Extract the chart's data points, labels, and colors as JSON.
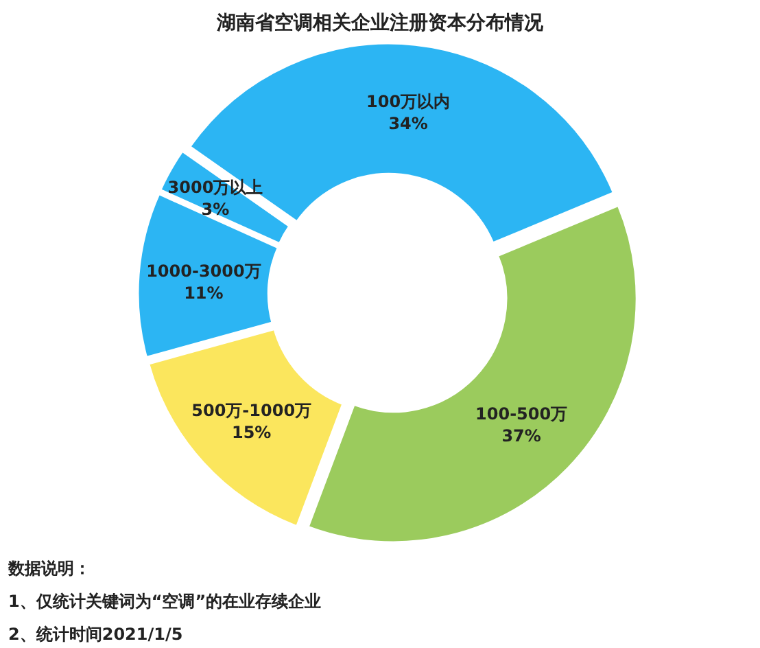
{
  "chart_data": {
    "type": "donut",
    "title": "湖南省空调相关企业注册资本分布情况",
    "categories": [
      "100万以内",
      "100-500万",
      "500万-1000万",
      "1000-3000万",
      "3000万以上"
    ],
    "values": [
      34,
      37,
      15,
      11,
      3
    ],
    "colors": [
      "#2cb5f3",
      "#9bcb5d",
      "#fbe65d",
      "#2cb5f3",
      "#2cb5f3"
    ],
    "value_labels": [
      "34%",
      "37%",
      "15%",
      "11%",
      "3%"
    ],
    "annotations": [
      "数据说明：",
      "1、仅统计关键词为“空调”的在业存续企业",
      "2、统计时间2021/1/5"
    ]
  }
}
